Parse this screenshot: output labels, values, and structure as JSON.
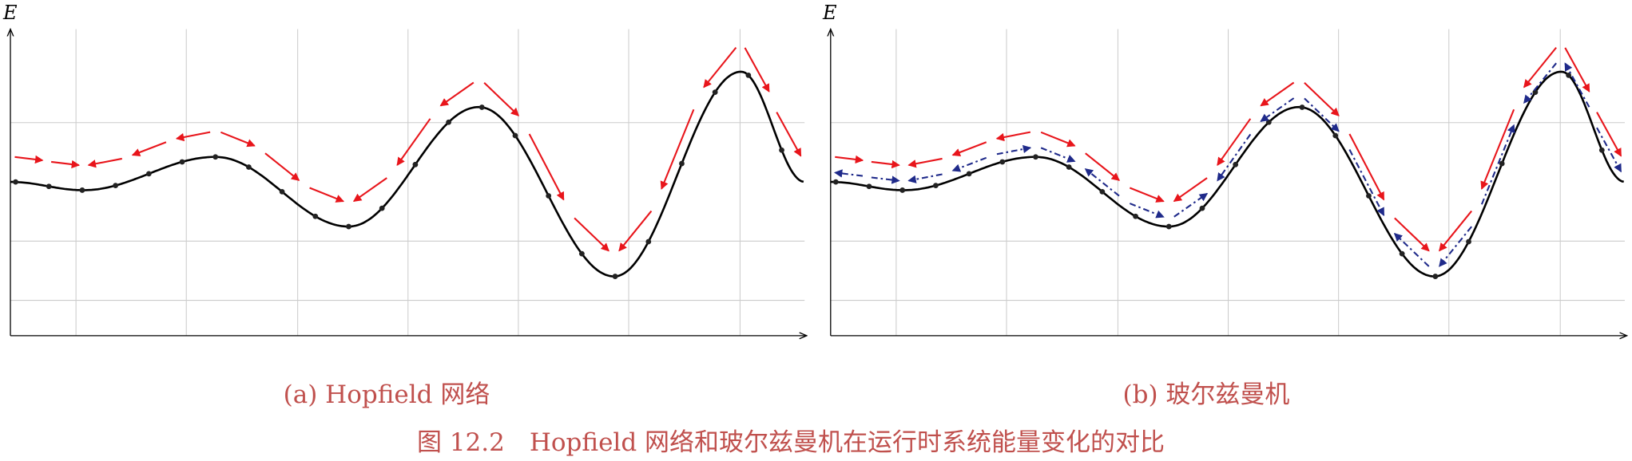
{
  "panels": [
    {
      "axis_label": "E",
      "caption": "(a) Hopfield 网络"
    },
    {
      "axis_label": "E",
      "caption": "(b) 玻尔兹曼机"
    }
  ],
  "figure_caption": "图 12.2　Hopfield 网络和玻尔兹曼机在运行时系统能量变化的对比"
}
